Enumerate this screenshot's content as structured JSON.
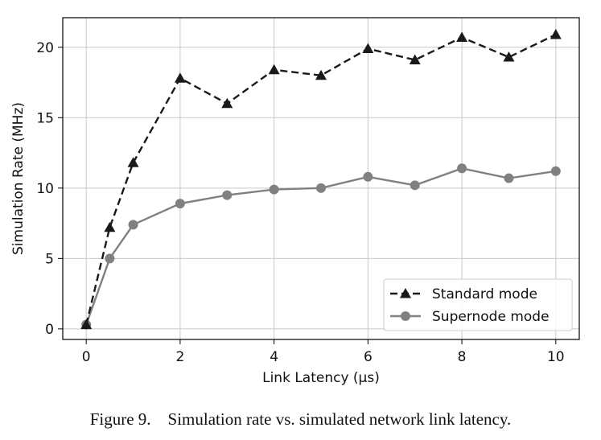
{
  "caption": "Figure 9.    Simulation rate vs. simulated network link latency.",
  "chart_data": {
    "type": "line",
    "xlabel": "Link Latency (μs)",
    "ylabel": "Simulation Rate (MHz)",
    "xlim": [
      -0.5,
      10.5
    ],
    "ylim": [
      -0.75,
      22.1
    ],
    "xticks": [
      0,
      2,
      4,
      6,
      8,
      10
    ],
    "yticks": [
      0,
      5,
      10,
      15,
      20
    ],
    "grid": true,
    "legend_position": "lower-right",
    "series": [
      {
        "name": "Standard mode",
        "color": "#1a1a1a",
        "marker": "triangle",
        "line_style": "dashed",
        "x": [
          0,
          0.5,
          1,
          2,
          3,
          4,
          5,
          6,
          7,
          8,
          9,
          10
        ],
        "y": [
          0.3,
          7.2,
          11.8,
          17.8,
          16.0,
          18.4,
          18.0,
          19.9,
          19.1,
          20.7,
          19.3,
          20.9
        ]
      },
      {
        "name": "Supernode mode",
        "color": "#808080",
        "marker": "circle",
        "line_style": "solid",
        "x": [
          0,
          0.5,
          1,
          2,
          3,
          4,
          5,
          6,
          7,
          8,
          9,
          10
        ],
        "y": [
          0.3,
          5.0,
          7.4,
          8.9,
          9.5,
          9.9,
          10.0,
          10.8,
          10.2,
          11.4,
          10.7,
          11.2
        ]
      }
    ]
  }
}
